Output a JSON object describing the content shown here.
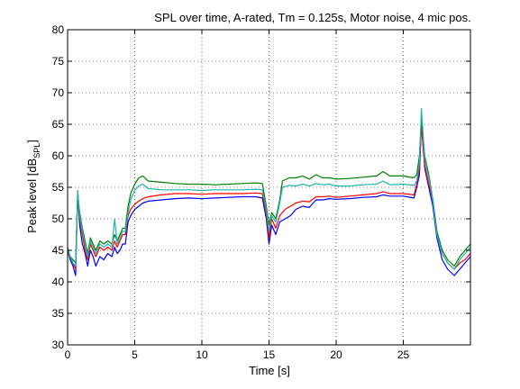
{
  "chart_data": {
    "type": "line",
    "title": "SPL over time, A-rated, Tm = 0.125s, Motor noise, 4 mic pos.",
    "xlabel": "Time [s]",
    "ylabel_main": "Peak level [dB",
    "ylabel_sub": "SPL",
    "ylabel_end": "]",
    "xlim": [
      0,
      30
    ],
    "ylim": [
      30,
      80
    ],
    "xticks": [
      0,
      5,
      10,
      15,
      20,
      25
    ],
    "yticks": [
      30,
      35,
      40,
      45,
      50,
      55,
      60,
      65,
      70,
      75,
      80
    ],
    "grid": true,
    "series": [
      {
        "color": "#0000ff",
        "points": [
          [
            0,
            45
          ],
          [
            0.2,
            43.5
          ],
          [
            0.4,
            42.5
          ],
          [
            0.6,
            41
          ],
          [
            0.75,
            54
          ],
          [
            0.9,
            49
          ],
          [
            1.1,
            46
          ],
          [
            1.3,
            44.5
          ],
          [
            1.5,
            42.5
          ],
          [
            1.7,
            45
          ],
          [
            1.9,
            44
          ],
          [
            2.1,
            42.5
          ],
          [
            2.4,
            44
          ],
          [
            2.7,
            43.5
          ],
          [
            3.0,
            44.5
          ],
          [
            3.3,
            44
          ],
          [
            3.5,
            45.5
          ],
          [
            3.7,
            44.5
          ],
          [
            3.9,
            45
          ],
          [
            4.1,
            46
          ],
          [
            4.3,
            46
          ],
          [
            4.5,
            49.5
          ],
          [
            4.7,
            50.5
          ],
          [
            5.0,
            51.5
          ],
          [
            5.3,
            52
          ],
          [
            5.6,
            52.5
          ],
          [
            6,
            52.8
          ],
          [
            7,
            53
          ],
          [
            8,
            53.2
          ],
          [
            9,
            53.3
          ],
          [
            10,
            53.2
          ],
          [
            11,
            53.3
          ],
          [
            12,
            53.4
          ],
          [
            13,
            53.5
          ],
          [
            14,
            53.5
          ],
          [
            14.5,
            53.3
          ],
          [
            14.8,
            50
          ],
          [
            15.0,
            46
          ],
          [
            15.2,
            49
          ],
          [
            15.5,
            47.5
          ],
          [
            15.8,
            49.5
          ],
          [
            16.2,
            50
          ],
          [
            16.6,
            50.5
          ],
          [
            17,
            51.5
          ],
          [
            17.5,
            52
          ],
          [
            18,
            51.8
          ],
          [
            18.5,
            53
          ],
          [
            19,
            53
          ],
          [
            19.5,
            53.2
          ],
          [
            20,
            53.1
          ],
          [
            21,
            53.2
          ],
          [
            22,
            53.4
          ],
          [
            23,
            53.5
          ],
          [
            23.5,
            53.8
          ],
          [
            24,
            53.6
          ],
          [
            25,
            53.6
          ],
          [
            25.8,
            53.3
          ],
          [
            26.0,
            55
          ],
          [
            26.2,
            57
          ],
          [
            26.35,
            65
          ],
          [
            26.6,
            58
          ],
          [
            26.9,
            55
          ],
          [
            27.2,
            52
          ],
          [
            27.5,
            47
          ],
          [
            27.9,
            43.5
          ],
          [
            28.3,
            42
          ],
          [
            28.8,
            41
          ],
          [
            29.2,
            42
          ],
          [
            29.6,
            43
          ],
          [
            30,
            44
          ]
        ]
      },
      {
        "color": "#ff0000",
        "points": [
          [
            0,
            44.5
          ],
          [
            0.2,
            44
          ],
          [
            0.4,
            43
          ],
          [
            0.6,
            42
          ],
          [
            0.75,
            54.5
          ],
          [
            0.9,
            50
          ],
          [
            1.1,
            47.5
          ],
          [
            1.3,
            45
          ],
          [
            1.5,
            43.5
          ],
          [
            1.7,
            46
          ],
          [
            1.9,
            45
          ],
          [
            2.1,
            44
          ],
          [
            2.4,
            45.5
          ],
          [
            2.7,
            45
          ],
          [
            3.0,
            45.5
          ],
          [
            3.3,
            45
          ],
          [
            3.5,
            46.5
          ],
          [
            3.7,
            45.5
          ],
          [
            3.9,
            46.5
          ],
          [
            4.1,
            47.5
          ],
          [
            4.3,
            47.5
          ],
          [
            4.5,
            50.5
          ],
          [
            4.7,
            51.5
          ],
          [
            5.0,
            52.3
          ],
          [
            5.3,
            52.8
          ],
          [
            5.6,
            53.2
          ],
          [
            6,
            53.5
          ],
          [
            7,
            53.8
          ],
          [
            8,
            54
          ],
          [
            9,
            54
          ],
          [
            10,
            53.9
          ],
          [
            11,
            54
          ],
          [
            12,
            54
          ],
          [
            13,
            54
          ],
          [
            14,
            54.1
          ],
          [
            14.5,
            54
          ],
          [
            14.8,
            51
          ],
          [
            15.0,
            47
          ],
          [
            15.2,
            50
          ],
          [
            15.5,
            48.5
          ],
          [
            15.8,
            50.5
          ],
          [
            16.2,
            51.5
          ],
          [
            16.6,
            52
          ],
          [
            17,
            52.5
          ],
          [
            17.5,
            52.8
          ],
          [
            18,
            52.7
          ],
          [
            18.5,
            53.5
          ],
          [
            19,
            53.5
          ],
          [
            19.5,
            53.6
          ],
          [
            20,
            53.4
          ],
          [
            21,
            53.6
          ],
          [
            22,
            53.8
          ],
          [
            23,
            54
          ],
          [
            23.5,
            54.3
          ],
          [
            24,
            54
          ],
          [
            25,
            54
          ],
          [
            25.8,
            53.8
          ],
          [
            26.0,
            55.5
          ],
          [
            26.2,
            58
          ],
          [
            26.35,
            65
          ],
          [
            26.6,
            58.5
          ],
          [
            26.9,
            55.5
          ],
          [
            27.2,
            53
          ],
          [
            27.5,
            48
          ],
          [
            27.9,
            44.5
          ],
          [
            28.3,
            43
          ],
          [
            28.8,
            42
          ],
          [
            29.2,
            43
          ],
          [
            29.6,
            43.5
          ],
          [
            30,
            44.5
          ]
        ]
      },
      {
        "color": "#008000",
        "points": [
          [
            0,
            45
          ],
          [
            0.2,
            44
          ],
          [
            0.4,
            43.5
          ],
          [
            0.6,
            43
          ],
          [
            0.75,
            54
          ],
          [
            0.9,
            51
          ],
          [
            1.1,
            48.5
          ],
          [
            1.3,
            46.5
          ],
          [
            1.5,
            44.5
          ],
          [
            1.7,
            47
          ],
          [
            1.9,
            46
          ],
          [
            2.1,
            45
          ],
          [
            2.4,
            46.5
          ],
          [
            2.7,
            46
          ],
          [
            3.0,
            46.5
          ],
          [
            3.3,
            46
          ],
          [
            3.5,
            47.5
          ],
          [
            3.7,
            46.5
          ],
          [
            3.9,
            47.5
          ],
          [
            4.1,
            48.5
          ],
          [
            4.3,
            48.5
          ],
          [
            4.5,
            52
          ],
          [
            4.7,
            54
          ],
          [
            5.0,
            55.5
          ],
          [
            5.3,
            56.5
          ],
          [
            5.6,
            56.8
          ],
          [
            6,
            56
          ],
          [
            7,
            55.8
          ],
          [
            8,
            55.6
          ],
          [
            9,
            55.5
          ],
          [
            10,
            55.5
          ],
          [
            11,
            55.4
          ],
          [
            12,
            55.5
          ],
          [
            13,
            55.6
          ],
          [
            14,
            55.7
          ],
          [
            14.5,
            55.6
          ],
          [
            14.8,
            52
          ],
          [
            15.0,
            49
          ],
          [
            15.2,
            51
          ],
          [
            15.5,
            50
          ],
          [
            15.8,
            53
          ],
          [
            16.0,
            56
          ],
          [
            16.5,
            56.5
          ],
          [
            17,
            56.5
          ],
          [
            17.5,
            56.8
          ],
          [
            18,
            56.3
          ],
          [
            18.5,
            57
          ],
          [
            19,
            56.5
          ],
          [
            19.5,
            56.5
          ],
          [
            20,
            56.3
          ],
          [
            21,
            56.4
          ],
          [
            22,
            56.6
          ],
          [
            23,
            56.8
          ],
          [
            23.5,
            57.5
          ],
          [
            24,
            56.8
          ],
          [
            25,
            56.8
          ],
          [
            25.8,
            56.5
          ],
          [
            26.0,
            57
          ],
          [
            26.2,
            60
          ],
          [
            26.35,
            66
          ],
          [
            26.6,
            60
          ],
          [
            26.9,
            57
          ],
          [
            27.2,
            53
          ],
          [
            27.5,
            48
          ],
          [
            27.9,
            45
          ],
          [
            28.3,
            43.5
          ],
          [
            28.8,
            42.5
          ],
          [
            29.2,
            44
          ],
          [
            29.6,
            45
          ],
          [
            30,
            46
          ]
        ]
      },
      {
        "color": "#1fb5b0",
        "points": [
          [
            0,
            45.5
          ],
          [
            0.2,
            44
          ],
          [
            0.4,
            43
          ],
          [
            0.6,
            42.5
          ],
          [
            0.75,
            54.5
          ],
          [
            0.9,
            50.5
          ],
          [
            1.1,
            48
          ],
          [
            1.3,
            46
          ],
          [
            1.5,
            44
          ],
          [
            1.7,
            46.5
          ],
          [
            1.9,
            45.5
          ],
          [
            2.1,
            44.5
          ],
          [
            2.4,
            46
          ],
          [
            2.7,
            45.5
          ],
          [
            3.0,
            46
          ],
          [
            3.3,
            45.5
          ],
          [
            3.5,
            50
          ],
          [
            3.7,
            46
          ],
          [
            3.9,
            47
          ],
          [
            4.1,
            48
          ],
          [
            4.3,
            48
          ],
          [
            4.5,
            51
          ],
          [
            4.7,
            53
          ],
          [
            5.0,
            54.5
          ],
          [
            5.3,
            55.2
          ],
          [
            5.6,
            55.5
          ],
          [
            6,
            54.8
          ],
          [
            7,
            54.6
          ],
          [
            8,
            54.6
          ],
          [
            9,
            54.6
          ],
          [
            10,
            54.5
          ],
          [
            11,
            54.6
          ],
          [
            12,
            54.6
          ],
          [
            13,
            54.6
          ],
          [
            14,
            54.7
          ],
          [
            14.5,
            54.6
          ],
          [
            14.8,
            51.5
          ],
          [
            15.0,
            48
          ],
          [
            15.2,
            50.5
          ],
          [
            15.5,
            49.5
          ],
          [
            15.8,
            52.5
          ],
          [
            16.0,
            55
          ],
          [
            16.5,
            55.3
          ],
          [
            17,
            55.2
          ],
          [
            17.5,
            55.5
          ],
          [
            18,
            55.2
          ],
          [
            18.5,
            55.6
          ],
          [
            19,
            55.4
          ],
          [
            19.5,
            55.5
          ],
          [
            20,
            55.2
          ],
          [
            21,
            55.2
          ],
          [
            22,
            55.4
          ],
          [
            23,
            55.5
          ],
          [
            23.5,
            56
          ],
          [
            24,
            55.4
          ],
          [
            25,
            55.5
          ],
          [
            25.8,
            55.3
          ],
          [
            26.0,
            56
          ],
          [
            26.2,
            59
          ],
          [
            26.35,
            67.5
          ],
          [
            26.6,
            59.5
          ],
          [
            26.9,
            56.5
          ],
          [
            27.2,
            53
          ],
          [
            27.5,
            47.5
          ],
          [
            27.9,
            44.5
          ],
          [
            28.3,
            43
          ],
          [
            28.8,
            42
          ],
          [
            29.2,
            43.5
          ],
          [
            29.6,
            44.5
          ],
          [
            30,
            45.5
          ]
        ]
      }
    ]
  }
}
